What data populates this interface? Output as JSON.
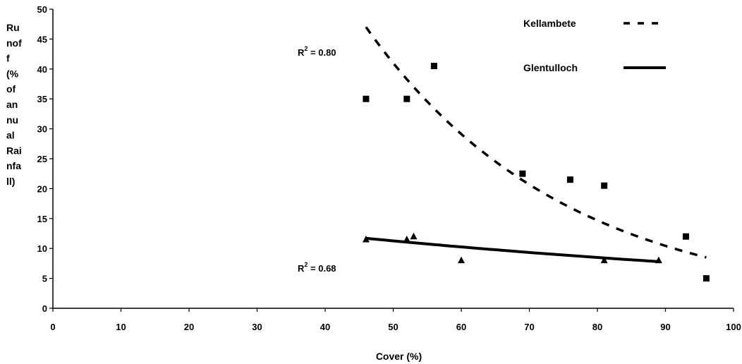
{
  "chart_data": {
    "type": "scatter",
    "xlabel": "Cover (%)",
    "ylabel_lines": [
      "Ru",
      "nof",
      "f",
      "(%",
      "of",
      "an",
      "nu",
      "al",
      "Rai",
      "nfa",
      "ll)"
    ],
    "xlim": [
      0,
      100
    ],
    "ylim": [
      0,
      50
    ],
    "x_ticks": [
      "0",
      "10",
      "20",
      "30",
      "40",
      "50",
      "60",
      "70",
      "80",
      "90",
      "100"
    ],
    "y_ticks": [
      "0",
      "5",
      "10",
      "15",
      "20",
      "25",
      "30",
      "35",
      "40",
      "45",
      "50"
    ],
    "grid": false,
    "legend_position": "top-right",
    "series": [
      {
        "name": "Kellambete",
        "marker": "square",
        "line_style": "dashed",
        "x": [
          46,
          52,
          56,
          69,
          76,
          81,
          93,
          96
        ],
        "y": [
          35,
          35,
          40.5,
          22.5,
          21.5,
          20.5,
          12,
          5
        ],
        "r2_label": "R",
        "r2_value": "= 0.80",
        "trend": {
          "type": "exponential",
          "x_start": 46,
          "x_end": 96,
          "y_start": 47,
          "y_end": 8.5
        }
      },
      {
        "name": "Glentulloch",
        "marker": "triangle",
        "line_style": "solid",
        "x": [
          46,
          52,
          53,
          60,
          81,
          89
        ],
        "y": [
          11.5,
          11.5,
          12,
          8,
          8,
          8
        ],
        "r2_label": "R",
        "r2_value": "= 0.68",
        "trend": {
          "type": "exponential",
          "x_start": 46,
          "x_end": 89,
          "y_start": 11.7,
          "y_end": 7.8
        }
      }
    ]
  }
}
